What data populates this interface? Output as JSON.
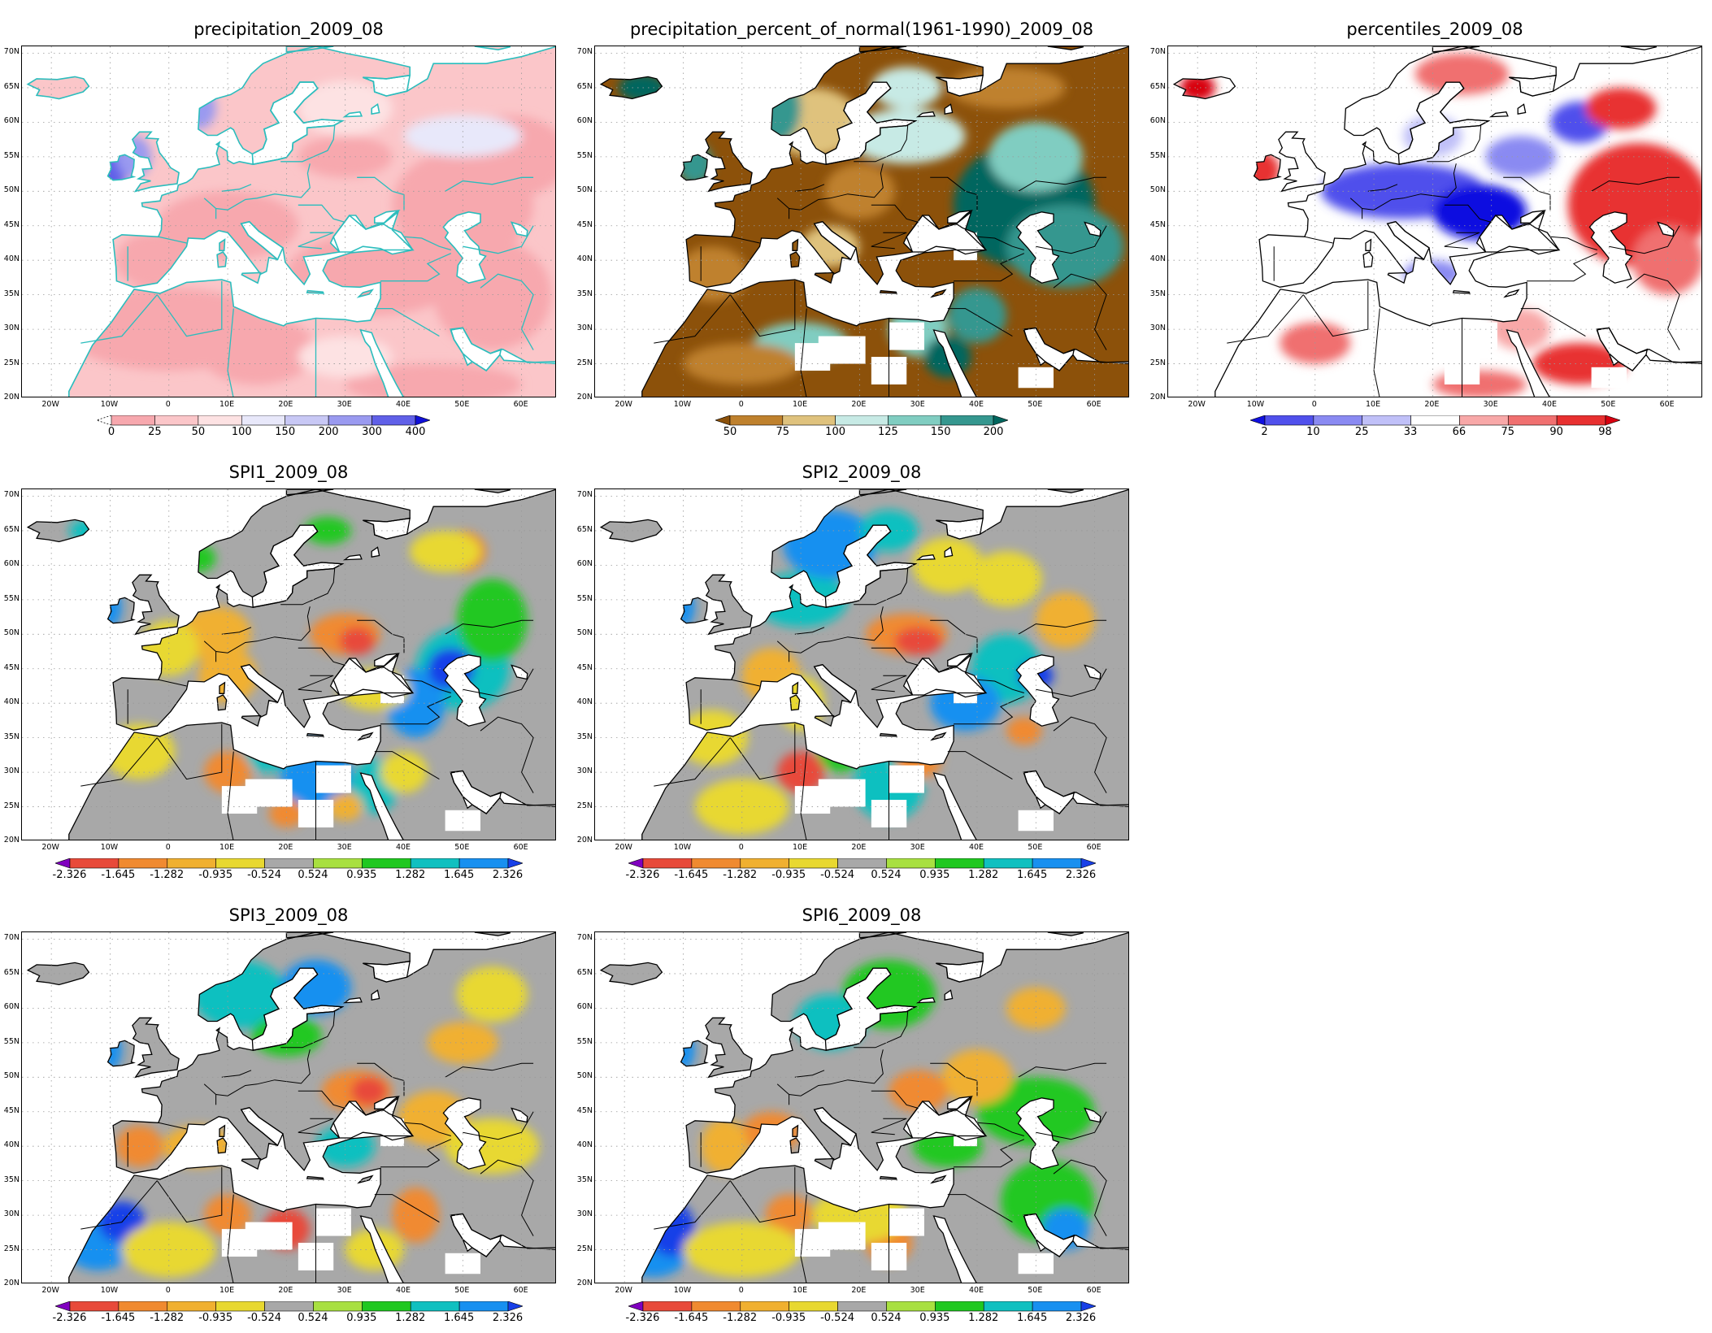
{
  "lat_labels": [
    "70N",
    "65N",
    "60N",
    "55N",
    "50N",
    "45N",
    "40N",
    "35N",
    "30N",
    "25N",
    "20N"
  ],
  "lon_labels": [
    "20W",
    "10W",
    "0",
    "10E",
    "20E",
    "30E",
    "40E",
    "50E",
    "60E"
  ],
  "colors": {
    "ocean": "#ffffff",
    "coast_cyan": "#2bbdbd",
    "coast_black": "#000000",
    "gridline": "#999999"
  },
  "panels": [
    {
      "id": "precipitation",
      "title": "precipitation_2009_08",
      "style": "precip",
      "colorbar": {
        "labels": [
          "0",
          "25",
          "50",
          "100",
          "150",
          "200",
          "300",
          "400"
        ],
        "colors": [
          "#f7a8ae",
          "#fbc6c9",
          "#fde2e3",
          "#e8e8fa",
          "#c8c8f5",
          "#9a9af0",
          "#6060e8",
          "#1010d8"
        ]
      }
    },
    {
      "id": "percent-normal",
      "title": "precipitation_percent_of_normal(1961-1990)_2009_08",
      "style": "pct",
      "colorbar": {
        "labels": [
          "50",
          "75",
          "100",
          "125",
          "150",
          "200"
        ],
        "colors": [
          "#8c510a",
          "#bf812d",
          "#dfc27d",
          "#c7eae5",
          "#80cdc1",
          "#35978f",
          "#01665e"
        ]
      }
    },
    {
      "id": "percentiles",
      "title": "percentiles_2009_08",
      "style": "perc",
      "colorbar": {
        "labels": [
          "2",
          "10",
          "25",
          "33",
          "66",
          "75",
          "90",
          "98"
        ],
        "colors": [
          "#1010e0",
          "#5050ec",
          "#8a8af2",
          "#c0c0f8",
          "#ffffff",
          "#f8a8a8",
          "#f07070",
          "#e83030",
          "#d80010"
        ]
      }
    },
    {
      "id": "spi1",
      "title": "SPI1_2009_08",
      "style": "spi",
      "colorbar": {
        "labels": [
          "-2.326",
          "-1.645",
          "-1.282",
          "-0.935",
          "-0.524",
          "0.524",
          "0.935",
          "1.282",
          "1.645",
          "2.326"
        ],
        "colors": [
          "#8000c0",
          "#e84a3a",
          "#f08a30",
          "#f0b030",
          "#e8d830",
          "#a8a8a8",
          "#a8e040",
          "#20c820",
          "#10c0c0",
          "#1890f0",
          "#1840e8"
        ]
      }
    },
    {
      "id": "spi2",
      "title": "SPI2_2009_08",
      "style": "spi",
      "colorbar": {
        "labels": [
          "-2.326",
          "-1.645",
          "-1.282",
          "-0.935",
          "-0.524",
          "0.524",
          "0.935",
          "1.282",
          "1.645",
          "2.326"
        ],
        "colors": [
          "#8000c0",
          "#e84a3a",
          "#f08a30",
          "#f0b030",
          "#e8d830",
          "#a8a8a8",
          "#a8e040",
          "#20c820",
          "#10c0c0",
          "#1890f0",
          "#1840e8"
        ]
      }
    },
    {
      "id": "spi3",
      "title": "SPI3_2009_08",
      "style": "spi",
      "colorbar": {
        "labels": [
          "-2.326",
          "-1.645",
          "-1.282",
          "-0.935",
          "-0.524",
          "0.524",
          "0.935",
          "1.282",
          "1.645",
          "2.326"
        ],
        "colors": [
          "#8000c0",
          "#e84a3a",
          "#f08a30",
          "#f0b030",
          "#e8d830",
          "#a8a8a8",
          "#a8e040",
          "#20c820",
          "#10c0c0",
          "#1890f0",
          "#1840e8"
        ]
      }
    },
    {
      "id": "spi6",
      "title": "SPI6_2009_08",
      "style": "spi",
      "colorbar": {
        "labels": [
          "-2.326",
          "-1.645",
          "-1.282",
          "-0.935",
          "-0.524",
          "0.524",
          "0.935",
          "1.282",
          "1.645",
          "2.326"
        ],
        "colors": [
          "#8000c0",
          "#e84a3a",
          "#f08a30",
          "#f0b030",
          "#e8d830",
          "#a8a8a8",
          "#a8e040",
          "#20c820",
          "#10c0c0",
          "#1890f0",
          "#1840e8"
        ]
      }
    }
  ]
}
